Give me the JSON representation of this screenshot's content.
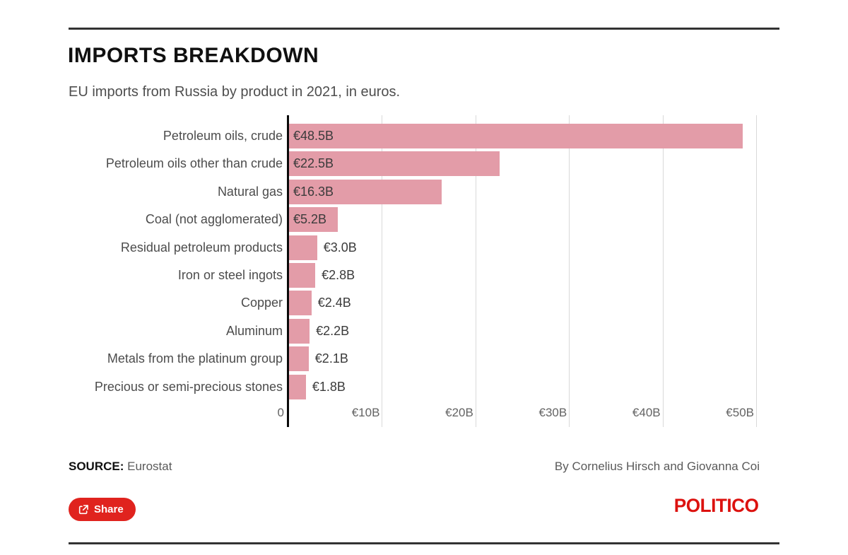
{
  "header": {
    "title": "IMPORTS BREAKDOWN",
    "subtitle": "EU imports from Russia by product in 2021, in euros."
  },
  "chart_data": {
    "type": "bar",
    "orientation": "horizontal",
    "title": "IMPORTS BREAKDOWN",
    "subtitle": "EU imports from Russia by product in 2021, in euros.",
    "categories": [
      "Petroleum oils, crude",
      "Petroleum oils other than crude",
      "Natural gas",
      "Coal (not agglomerated)",
      "Residual petroleum products",
      "Iron or steel ingots",
      "Copper",
      "Aluminum",
      "Metals from the platinum group",
      "Precious or semi-precious stones"
    ],
    "values": [
      48.5,
      22.5,
      16.3,
      5.2,
      3.0,
      2.8,
      2.4,
      2.2,
      2.1,
      1.8
    ],
    "value_labels": [
      "€48.5B",
      "€22.5B",
      "€16.3B",
      "€5.2B",
      "€3.0B",
      "€2.8B",
      "€2.4B",
      "€2.2B",
      "€2.1B",
      "€1.8B"
    ],
    "x_ticks": [
      {
        "label": "0",
        "value": 0
      },
      {
        "label": "€10B",
        "value": 10
      },
      {
        "label": "€20B",
        "value": 20
      },
      {
        "label": "€30B",
        "value": 30
      },
      {
        "label": "€40B",
        "value": 40
      },
      {
        "label": "€50B",
        "value": 50
      }
    ],
    "xlim": [
      0,
      50
    ],
    "grid": true,
    "legend": "none",
    "bar_color": "#e39ca8",
    "value_label_inside_threshold": 5
  },
  "footer": {
    "source_label": "SOURCE:",
    "source_value": "Eurostat",
    "byline": "By Cornelius Hirsch and Giovanna Coi",
    "share_label": "Share",
    "logo_text": "POLITICO"
  },
  "colors": {
    "bar": "#e39ca8",
    "accent_red": "#e0231e",
    "logo_red": "#dc120f",
    "rule": "#333333",
    "gridline": "#d9d9d9",
    "axis": "#0a0a0a"
  }
}
